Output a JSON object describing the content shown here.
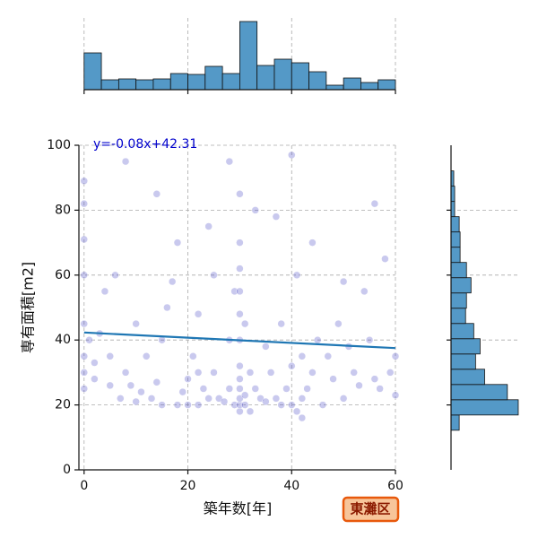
{
  "chart_data": [
    {
      "type": "scatter",
      "xlabel": "築年数[年]",
      "ylabel": "専有面積[m2]",
      "xlim": [
        -1,
        60
      ],
      "ylim": [
        0,
        100
      ],
      "xticks": [
        0,
        20,
        40,
        60
      ],
      "yticks": [
        0,
        20,
        40,
        60,
        80,
        100
      ],
      "grid": true,
      "x": [
        0,
        0,
        0,
        0,
        0,
        0,
        0,
        0,
        1,
        2,
        3,
        4,
        5,
        5,
        6,
        7,
        8,
        9,
        10,
        10,
        11,
        12,
        13,
        14,
        15,
        15,
        16,
        17,
        18,
        19,
        20,
        20,
        21,
        22,
        22,
        23,
        24,
        25,
        25,
        26,
        27,
        28,
        28,
        29,
        29,
        30,
        30,
        30,
        30,
        30,
        30,
        30,
        30,
        30,
        30,
        30,
        30,
        31,
        31,
        31,
        32,
        32,
        33,
        34,
        35,
        35,
        36,
        37,
        38,
        38,
        39,
        40,
        40,
        40,
        41,
        41,
        42,
        42,
        42,
        43,
        44,
        45,
        46,
        47,
        48,
        49,
        50,
        51,
        52,
        53,
        54,
        55,
        56,
        57,
        58,
        59,
        60,
        60,
        2,
        8,
        14,
        18,
        24,
        28,
        33,
        37,
        44,
        50,
        56,
        22
      ],
      "series": [
        {
          "color": "#4b4bc8",
          "values": [
            89,
            82,
            71,
            60,
            45,
            35,
            30,
            25,
            40,
            28,
            42,
            55,
            26,
            35,
            60,
            22,
            30,
            26,
            21,
            45,
            24,
            35,
            22,
            27,
            20,
            40,
            50,
            58,
            20,
            24,
            20,
            28,
            35,
            48,
            20,
            25,
            22,
            30,
            60,
            22,
            21,
            25,
            40,
            20,
            55,
            18,
            20,
            22,
            25,
            28,
            32,
            40,
            48,
            55,
            62,
            70,
            85,
            20,
            23,
            45,
            18,
            30,
            25,
            22,
            21,
            38,
            30,
            22,
            20,
            45,
            25,
            20,
            32,
            97,
            18,
            60,
            16,
            22,
            35,
            25,
            30,
            40,
            20,
            35,
            28,
            45,
            22,
            38,
            30,
            26,
            55,
            40,
            28,
            25,
            65,
            30,
            23,
            35,
            33,
            95,
            85,
            70,
            75,
            95,
            80,
            78,
            70,
            58,
            82,
            30
          ]
        }
      ],
      "regression": {
        "label": "y=-0.08x+42.31",
        "slope": -0.08,
        "intercept": 42.31,
        "color": "#1f77b4"
      },
      "badge": "東灘区"
    },
    {
      "type": "histogram",
      "orientation": "vertical",
      "color": "#5499c7",
      "bins": [
        0,
        3.33,
        6.67,
        10,
        13.33,
        16.67,
        20,
        23.33,
        26.67,
        30,
        33.33,
        36.67,
        40,
        43.33,
        46.67,
        50,
        53.33,
        56.67,
        60
      ],
      "values": [
        82,
        22,
        24,
        22,
        24,
        36,
        34,
        52,
        36,
        152,
        54,
        68,
        60,
        40,
        10,
        26,
        16,
        22
      ],
      "ylim": [
        0,
        160
      ],
      "xticks": [
        0,
        20,
        40,
        60
      ]
    },
    {
      "type": "histogram",
      "orientation": "horizontal",
      "color": "#5499c7",
      "bins": [
        12.2,
        16.9,
        21.6,
        26.3,
        31,
        35.7,
        40.4,
        45.1,
        49.8,
        54.5,
        59.2,
        63.9,
        68.6,
        73.3,
        78,
        82.7,
        87.4,
        92.1
      ],
      "values": [
        18,
        148,
        124,
        74,
        54,
        64,
        50,
        32,
        34,
        44,
        34,
        20,
        20,
        18,
        8,
        8,
        6
      ],
      "xlim": [
        0,
        150
      ],
      "yticks": [
        20,
        40,
        60,
        80
      ]
    }
  ]
}
